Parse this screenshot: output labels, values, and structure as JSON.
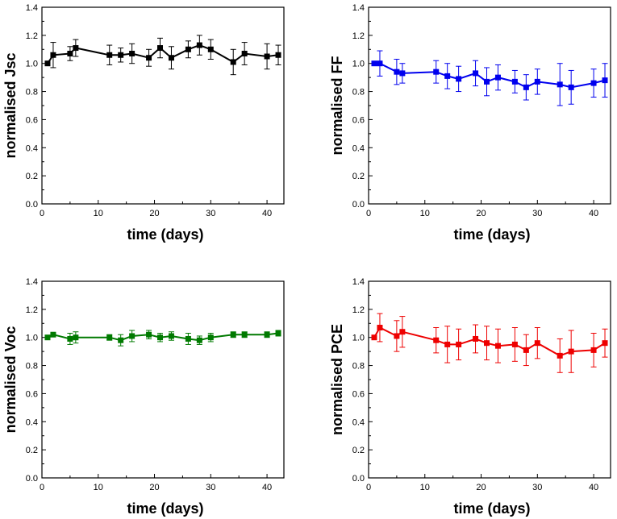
{
  "chart_data": [
    {
      "type": "line",
      "series_name": "Jsc",
      "color": "#000000",
      "xlabel": "time (days)",
      "ylabel": "normalised Jsc",
      "xlim": [
        0,
        43
      ],
      "ylim": [
        0.0,
        1.4
      ],
      "xticks": [
        0,
        10,
        20,
        30,
        40
      ],
      "yticks": [
        0.0,
        0.2,
        0.4,
        0.6,
        0.8,
        1.0,
        1.2,
        1.4
      ],
      "x": [
        1,
        2,
        5,
        6,
        12,
        14,
        16,
        19,
        21,
        23,
        26,
        28,
        30,
        34,
        36,
        40,
        42
      ],
      "y": [
        1.0,
        1.06,
        1.07,
        1.11,
        1.06,
        1.06,
        1.07,
        1.04,
        1.11,
        1.04,
        1.1,
        1.13,
        1.1,
        1.01,
        1.07,
        1.05,
        1.06
      ],
      "err": [
        0.0,
        0.09,
        0.05,
        0.06,
        0.07,
        0.05,
        0.07,
        0.06,
        0.07,
        0.08,
        0.06,
        0.07,
        0.07,
        0.09,
        0.08,
        0.09,
        0.07
      ]
    },
    {
      "type": "line",
      "series_name": "FF",
      "color": "#0000ee",
      "xlabel": "time (days)",
      "ylabel": "normalised FF",
      "xlim": [
        0,
        43
      ],
      "ylim": [
        0.0,
        1.4
      ],
      "xticks": [
        0,
        10,
        20,
        30,
        40
      ],
      "yticks": [
        0.0,
        0.2,
        0.4,
        0.6,
        0.8,
        1.0,
        1.2,
        1.4
      ],
      "x": [
        1,
        2,
        5,
        6,
        12,
        14,
        16,
        19,
        21,
        23,
        26,
        28,
        30,
        34,
        36,
        40,
        42
      ],
      "y": [
        1.0,
        1.0,
        0.94,
        0.93,
        0.94,
        0.91,
        0.89,
        0.93,
        0.87,
        0.9,
        0.87,
        0.83,
        0.87,
        0.85,
        0.83,
        0.86,
        0.88
      ],
      "err": [
        0.0,
        0.09,
        0.09,
        0.07,
        0.08,
        0.09,
        0.09,
        0.09,
        0.1,
        0.09,
        0.08,
        0.09,
        0.09,
        0.15,
        0.12,
        0.1,
        0.12
      ]
    },
    {
      "type": "line",
      "series_name": "Voc",
      "color": "#007a00",
      "xlabel": "time (days)",
      "ylabel": "normalised Voc",
      "xlim": [
        0,
        43
      ],
      "ylim": [
        0.0,
        1.4
      ],
      "xticks": [
        0,
        10,
        20,
        30,
        40
      ],
      "yticks": [
        0.0,
        0.2,
        0.4,
        0.6,
        0.8,
        1.0,
        1.2,
        1.4
      ],
      "x": [
        1,
        2,
        5,
        6,
        12,
        14,
        16,
        19,
        21,
        23,
        26,
        28,
        30,
        34,
        36,
        40,
        42
      ],
      "y": [
        1.0,
        1.02,
        0.99,
        1.0,
        1.0,
        0.98,
        1.01,
        1.02,
        1.0,
        1.01,
        0.99,
        0.98,
        1.0,
        1.02,
        1.02,
        1.02,
        1.03
      ],
      "err": [
        0.0,
        0.01,
        0.04,
        0.04,
        0.02,
        0.04,
        0.04,
        0.03,
        0.03,
        0.03,
        0.04,
        0.03,
        0.03,
        0.02,
        0.02,
        0.02,
        0.02
      ]
    },
    {
      "type": "line",
      "series_name": "PCE",
      "color": "#ee0000",
      "xlabel": "time (days)",
      "ylabel": "normalised PCE",
      "xlim": [
        0,
        43
      ],
      "ylim": [
        0.0,
        1.4
      ],
      "xticks": [
        0,
        10,
        20,
        30,
        40
      ],
      "yticks": [
        0.0,
        0.2,
        0.4,
        0.6,
        0.8,
        1.0,
        1.2,
        1.4
      ],
      "x": [
        1,
        2,
        5,
        6,
        12,
        14,
        16,
        19,
        21,
        23,
        26,
        28,
        30,
        34,
        36,
        40,
        42
      ],
      "y": [
        1.0,
        1.07,
        1.01,
        1.04,
        0.98,
        0.95,
        0.95,
        0.99,
        0.96,
        0.94,
        0.95,
        0.91,
        0.96,
        0.87,
        0.9,
        0.91,
        0.96
      ],
      "err": [
        0.0,
        0.1,
        0.11,
        0.11,
        0.09,
        0.13,
        0.11,
        0.1,
        0.12,
        0.12,
        0.12,
        0.11,
        0.11,
        0.12,
        0.15,
        0.12,
        0.1
      ]
    }
  ]
}
